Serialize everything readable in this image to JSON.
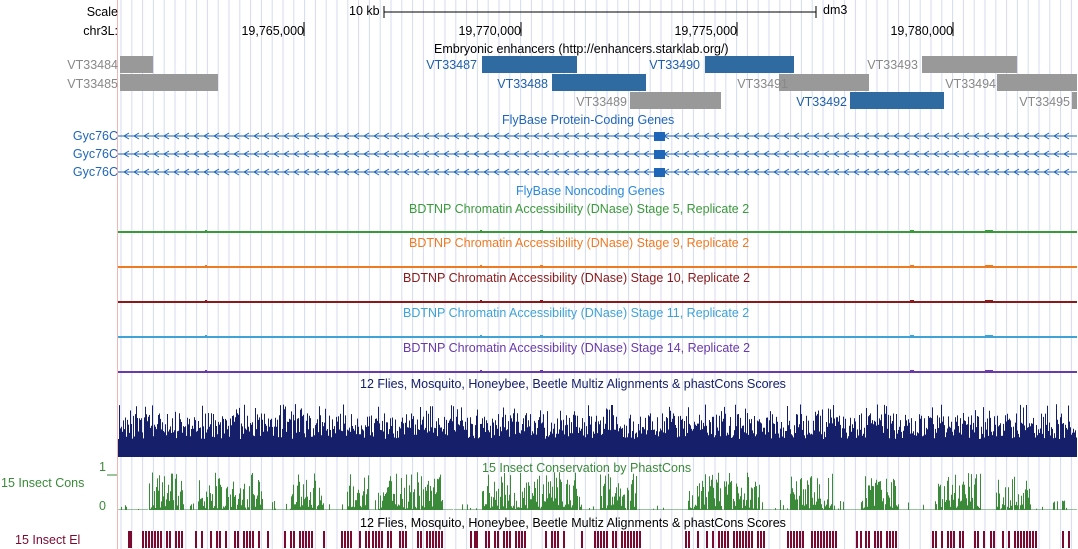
{
  "colors": {
    "enhancer_gray": "#999999",
    "enhancer_gray_text": "#888888",
    "enhancer_blue": "#2f6aa0",
    "enhancer_blue_text": "#1f5fa8",
    "gene_blue": "#1f66b8",
    "nc_blue": "#2b8ad8",
    "dnase5": "#3a9a3a",
    "dnase9": "#ee7a22",
    "dnase10": "#8a1a1a",
    "dnase11": "#3fa3d6",
    "dnase14": "#6a3aa8",
    "multiz": "#16206a",
    "cons": "#3a8a3a",
    "el": "#7a0a30",
    "grid": "#d6dbf2"
  },
  "ruler": {
    "scale_label": "Scale",
    "chrom_label": "chr3L:",
    "scale_bar_label": "10 kb",
    "assembly": "dm3",
    "ticks": [
      "19,765,000",
      "19,770,000",
      "19,775,000",
      "19,780,000"
    ]
  },
  "enhancers": {
    "title": "Embryonic enhancers (http://enhancers.starklab.org/)",
    "left_labels": [
      "VT33484",
      "VT33485"
    ],
    "items": [
      {
        "name": "VT33484",
        "kind": "gray"
      },
      {
        "name": "VT33485",
        "kind": "gray"
      },
      {
        "name": "VT33487",
        "kind": "blue"
      },
      {
        "name": "VT33488",
        "kind": "blue"
      },
      {
        "name": "VT33489",
        "kind": "gray"
      },
      {
        "name": "VT33490",
        "kind": "blue"
      },
      {
        "name": "VT33491",
        "kind": "gray"
      },
      {
        "name": "VT33492",
        "kind": "blue"
      },
      {
        "name": "VT33493",
        "kind": "gray"
      },
      {
        "name": "VT33494",
        "kind": "gray"
      },
      {
        "name": "VT33495",
        "kind": "gray"
      }
    ]
  },
  "genes": {
    "title": "FlyBase Protein-Coding Genes",
    "transcripts": [
      "Gyc76C",
      "Gyc76C",
      "Gyc76C"
    ]
  },
  "noncoding": {
    "title": "FlyBase Noncoding Genes"
  },
  "dnase": [
    {
      "title": "BDTNP Chromatin Accessibility (DNase) Stage 5, Replicate 2",
      "color_key": "dnase5"
    },
    {
      "title": "BDTNP Chromatin Accessibility (DNase) Stage 9, Replicate 2",
      "color_key": "dnase9"
    },
    {
      "title": "BDTNP Chromatin Accessibility (DNase) Stage 10, Replicate 2",
      "color_key": "dnase10"
    },
    {
      "title": "BDTNP Chromatin Accessibility (DNase) Stage 11, Replicate 2",
      "color_key": "dnase11"
    },
    {
      "title": "BDTNP Chromatin Accessibility (DNase) Stage 14, Replicate 2",
      "color_key": "dnase14"
    }
  ],
  "multiz": {
    "title": "12 Flies, Mosquito, Honeybee, Beetle Multiz Alignments & phastCons Scores"
  },
  "cons": {
    "left_label": "15 Insect Cons",
    "title": "15 Insect Conservation by PhastCons",
    "ymax": "1",
    "ymin": "0"
  },
  "elements": {
    "left_label": "15 Insect El",
    "title": "12 Flies, Mosquito, Honeybee, Beetle Multiz Alignments & phastCons Scores"
  }
}
